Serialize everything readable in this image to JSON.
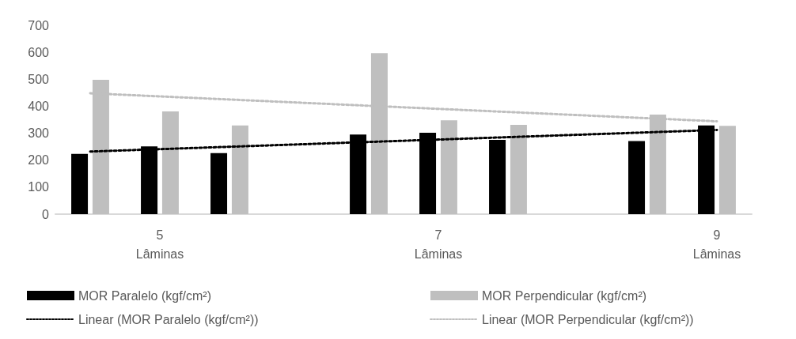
{
  "chart_data": {
    "type": "bar",
    "categories": [
      null,
      "5\nLâminas",
      null,
      null,
      null,
      "7\nLâminas",
      null,
      null,
      null,
      "9\nLâminas"
    ],
    "series": [
      {
        "name": "MOR Paralelo (kgf/cm²)",
        "color": "#000000",
        "values": [
          223,
          251,
          226,
          null,
          295,
          302,
          275,
          null,
          271,
          329
        ]
      },
      {
        "name": "MOR Perpendicular (kgf/cm²)",
        "color": "#bfbfbf",
        "values": [
          498,
          381,
          329,
          null,
          597,
          348,
          331,
          null,
          369,
          327
        ]
      },
      {
        "name": "Linear (MOR Paralelo (kgf/cm²))",
        "type": "line",
        "color": "#000000",
        "line_style": "dotted",
        "marker": "none",
        "values": [
          232,
          null,
          null,
          null,
          null,
          null,
          null,
          null,
          null,
          312
        ]
      },
      {
        "name": "Linear (MOR Perpendicular (kgf/cm²))",
        "type": "line",
        "color": "#bfbfbf",
        "line_style": "dotted",
        "marker": "none",
        "values": [
          448,
          null,
          null,
          null,
          null,
          null,
          null,
          null,
          null,
          344
        ]
      }
    ],
    "ylim": [
      0,
      700
    ],
    "yticks": [
      0,
      100,
      200,
      300,
      400,
      500,
      600,
      700
    ],
    "grid": false,
    "legend": "bottom"
  }
}
